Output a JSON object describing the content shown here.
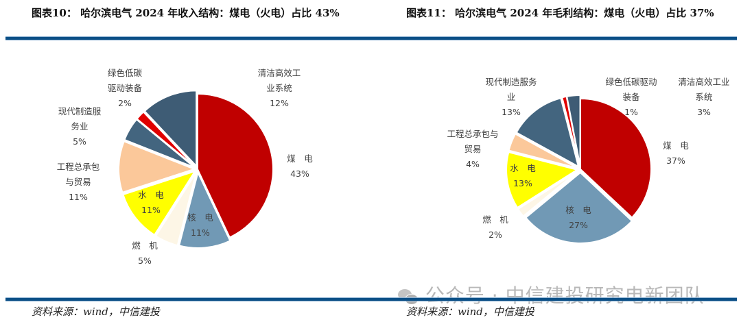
{
  "left": {
    "title": "图表10： 哈尔滨电气 2024 年收入结构：煤电（火电）占比 43%",
    "source": "资料来源：wind，中信建投"
  },
  "right": {
    "title": "图表11： 哈尔滨电气 2024 年毛利结构：煤电（火电）占比 37%",
    "source": "资料来源：wind，中信建投"
  },
  "watermark": "公众号 · 中信建投研究电新团队",
  "colors": {
    "coal": "#c00000",
    "nuclear": "#7199b5",
    "gas": "#fdf6e6",
    "hydro": "#ffff00",
    "epc": "#fbc89a",
    "modern_service": "#43657f",
    "green": "#e00000",
    "clean_industry": "#3e5c75",
    "rule": "#0b4f86"
  },
  "chart_data": [
    {
      "type": "pie",
      "title": "图表10： 哈尔滨电气 2024 年收入结构：煤电（火电）占比 43%",
      "categories": [
        "煤电",
        "核电",
        "燃机",
        "水电",
        "工程总承包与贸易",
        "现代制造服务业",
        "绿色低碳驱动装备",
        "清洁高效工业系统"
      ],
      "values": [
        43,
        11,
        5,
        11,
        11,
        5,
        2,
        12
      ],
      "labels": [
        "煤　电\n43%",
        "核　电\n11%",
        "燃　机\n5%",
        "水　电\n11%",
        "工程总承包\n与贸易\n11%",
        "现代制造服\n务业\n5%",
        "绿色低碳\n驱动装备\n2%",
        "清洁高效工\n业系统\n12%"
      ],
      "start_angle": "12 o'clock, clockwise",
      "source": "资料来源：wind，中信建投"
    },
    {
      "type": "pie",
      "title": "图表11： 哈尔滨电气 2024 年毛利结构：煤电（火电）占比 37%",
      "categories": [
        "煤电",
        "核电",
        "燃机",
        "水电",
        "工程总承包与贸易",
        "现代制造服务业",
        "绿色低碳驱动装备",
        "清洁高效工业系统"
      ],
      "values": [
        37,
        27,
        2,
        13,
        4,
        13,
        1,
        3
      ],
      "labels": [
        "煤　电\n37%",
        "核　电\n27%",
        "燃　机\n2%",
        "水　电\n13%",
        "工程总承包与\n贸易\n4%",
        "现代制造服务\n业\n13%",
        "绿色低碳驱动\n装备\n1%",
        "清洁高效工业\n系统\n3%"
      ],
      "start_angle": "12 o'clock, clockwise",
      "source": "资料来源：wind，中信建投"
    }
  ]
}
